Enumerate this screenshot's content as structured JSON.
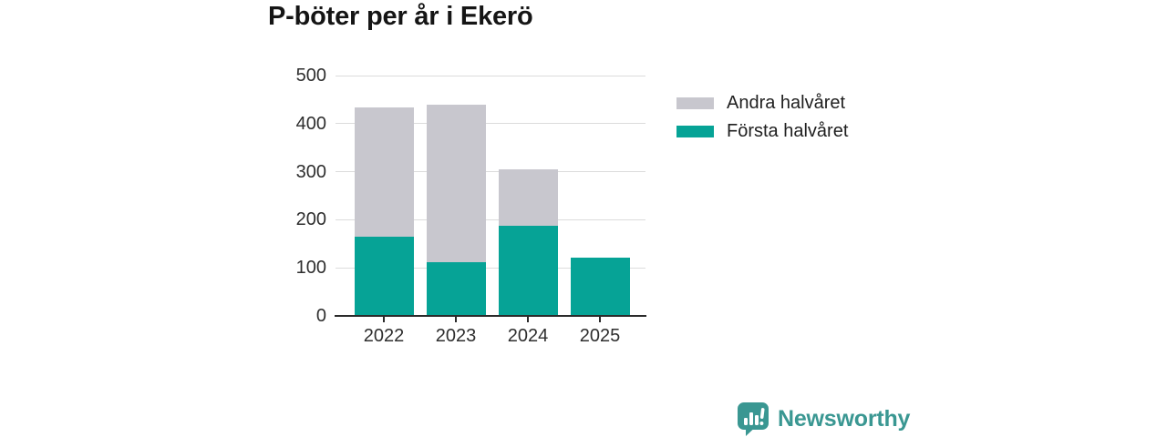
{
  "title": "P-böter per år i Ekerö",
  "chart_data": {
    "type": "bar",
    "stacked": true,
    "title": "P-böter per år i Ekerö",
    "categories": [
      "2022",
      "2023",
      "2024",
      "2025"
    ],
    "series": [
      {
        "name": "Första halvåret",
        "color": "#06a396",
        "values": [
          164,
          112,
          187,
          121
        ]
      },
      {
        "name": "Andra halvåret",
        "color": "#c8c7ce",
        "values": [
          268,
          328,
          118,
          0
        ]
      }
    ],
    "totals": [
      432,
      440,
      305,
      121
    ],
    "ylim": [
      0,
      500
    ],
    "yticks": [
      0,
      100,
      200,
      300,
      400,
      500
    ],
    "xlabel": "",
    "ylabel": "",
    "grid": true,
    "legend_position": "top-right",
    "legend_order": [
      "Andra halvåret",
      "Första halvåret"
    ]
  },
  "branding": {
    "logo_text": "Newsworthy",
    "logo_icon": "newsworthy-speech-bubble-bar-chart-icon",
    "logo_color": "#3a9792"
  },
  "colors": {
    "first_half_teal": "#06a396",
    "second_half_gray": "#c8c7ce",
    "gridline": "#dcdcdc",
    "axis": "#2b2b2b",
    "title_text": "#151515",
    "tick_text": "#2e2e2e"
  }
}
